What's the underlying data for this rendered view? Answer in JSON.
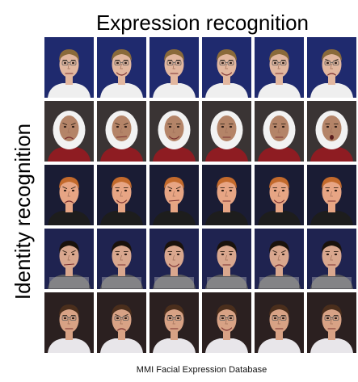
{
  "header": {
    "top_label": "Expression recognition",
    "side_label": "Identity recognition"
  },
  "footer": {
    "caption": "MMI Facial Expression Database"
  },
  "grid": {
    "rows": [
      {
        "subject": "young-man-glasses-blonde",
        "background": "#1f2a6e",
        "skin": "#e2b79f",
        "hair": "#8a6a3a",
        "clothing": "#efefef",
        "glasses": true,
        "headscarf": false,
        "expressions": [
          "neutral",
          "smile",
          "neutral",
          "smile",
          "neutral",
          "frown"
        ]
      },
      {
        "subject": "woman-white-headscarf",
        "background": "#3a3434",
        "skin": "#b48468",
        "hair": "#f2f2f2",
        "clothing": "#8e1c22",
        "glasses": false,
        "headscarf": true,
        "expressions": [
          "frown",
          "grimace",
          "smile",
          "neutral",
          "neutral",
          "surprise"
        ]
      },
      {
        "subject": "ginger-man",
        "background": "#1a1c34",
        "skin": "#e7a584",
        "hair": "#c36a2c",
        "clothing": "#1d1d1d",
        "glasses": false,
        "headscarf": false,
        "expressions": [
          "frown",
          "smile",
          "grimace",
          "neutral",
          "smile",
          "neutral"
        ]
      },
      {
        "subject": "dark-haired-man-striped-shirt",
        "background": "#1f2350",
        "skin": "#d9a78e",
        "hair": "#1a120c",
        "clothing": "#5a5a5e",
        "glasses": false,
        "headscarf": false,
        "expressions": [
          "grimace",
          "neutral",
          "smile",
          "neutral",
          "frown",
          "neutral"
        ]
      },
      {
        "subject": "man-glasses-white-shirt",
        "background": "#2b2020",
        "skin": "#d8a285",
        "hair": "#4a2e1c",
        "clothing": "#e8e6ea",
        "glasses": true,
        "headscarf": false,
        "expressions": [
          "neutral",
          "frown",
          "neutral",
          "smile",
          "neutral",
          "neutral"
        ]
      }
    ]
  }
}
